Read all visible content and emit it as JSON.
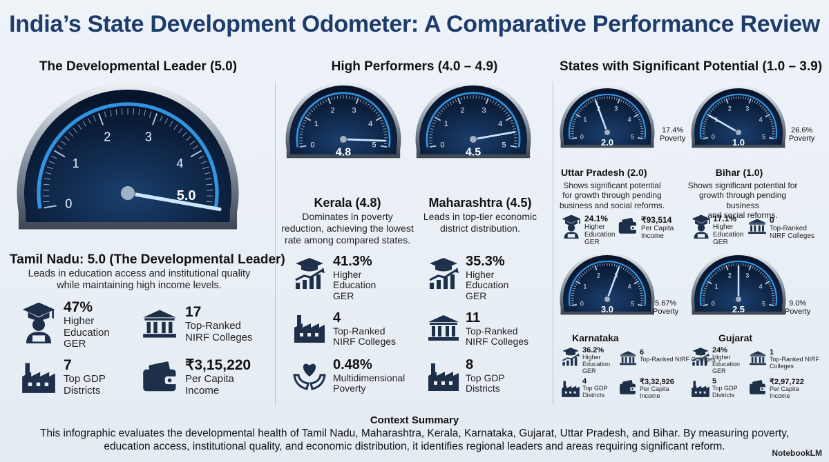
{
  "title": "India’s State Development Odometer: A Comparative Performance Review",
  "columns": {
    "leader": "The Developmental Leader (5.0)",
    "high": "High Performers (4.0 – 4.9)",
    "potential": "States with Significant Potential (1.0 – 3.9)"
  },
  "tamil_nadu": {
    "score": 5.0,
    "gauge_value": "5.0",
    "heading": "Tamil Nadu: 5.0 (The Developmental Leader)",
    "desc_line1": "Leads in education access and institutional quality",
    "desc_line2": "while maintaining high income levels.",
    "stats": [
      {
        "value": "47%",
        "label1": "Higher",
        "label2": "Education",
        "label3": "GER",
        "icon": "graduate-icon"
      },
      {
        "value": "17",
        "label1": "Top-Ranked",
        "label2": "NIRF Colleges",
        "icon": "institution-icon"
      },
      {
        "value": "7",
        "label1": "Top GDP",
        "label2": "Districts",
        "icon": "factory-icon"
      },
      {
        "value": "₹3,15,220",
        "label1": "Per Capita",
        "label2": "Income",
        "icon": "wallet-icon"
      }
    ]
  },
  "kerala": {
    "score": 4.8,
    "gauge_value": "4.8",
    "heading": "Kerala (4.8)",
    "desc_line1": "Dominates in poverty",
    "desc_line2": "reduction, achieving the lowest",
    "desc_line3": "rate among compared states.",
    "stats": [
      {
        "value": "41.3%",
        "label1": "Higher",
        "label2": "Education",
        "label3": "GER",
        "icon": "education-growth-icon"
      },
      {
        "value": "4",
        "label1": "Top-Ranked",
        "label2": "NIRF Colleges",
        "icon": "factory-icon"
      },
      {
        "value": "0.48%",
        "label1": "Multidimensional",
        "label2": "Poverty",
        "icon": "heart-hands-icon"
      }
    ]
  },
  "maharashtra": {
    "score": 4.5,
    "gauge_value": "4.5",
    "heading": "Maharashtra (4.5)",
    "desc_line1": "Leads in top-tier economic",
    "desc_line2": "district distribution.",
    "stats": [
      {
        "value": "35.3%",
        "label1": "Higher",
        "label2": "Education",
        "label3": "GER",
        "icon": "education-growth-icon"
      },
      {
        "value": "11",
        "label1": "Top-Ranked",
        "label2": "NIRF Colleges",
        "icon": "institution-icon"
      },
      {
        "value": "8",
        "label1": "Top GDP",
        "label2": "Districts",
        "icon": "factory-icon"
      }
    ]
  },
  "uttar_pradesh": {
    "score": 2.0,
    "gauge_value": "2.0",
    "poverty_value": "17.4%",
    "poverty_label": "Poverty",
    "heading": "Uttar Pradesh (2.0)",
    "desc_line1": "Shows significant potential",
    "desc_line2": "for growth through pending",
    "desc_line3": "business and social reforms.",
    "stats": [
      {
        "value": "24.1%",
        "label1": "Higher",
        "label2": "Education",
        "label3": "GER",
        "icon": "graduate-icon"
      },
      {
        "value": "₹93,514",
        "label1": "Per Capita",
        "label2": "Income",
        "icon": "wallet-icon"
      }
    ]
  },
  "bihar": {
    "score": 1.0,
    "gauge_value": "1.0",
    "poverty_value": "26.6%",
    "poverty_label": "Poverty",
    "heading": "Bihar (1.0)",
    "desc_line1": "Shows significant potential for",
    "desc_line2": "growth through pending business",
    "desc_line3": "and social reforms.",
    "stats": [
      {
        "value": "17.1%",
        "label1": "Higher",
        "label2": "Education",
        "label3": "GER",
        "icon": "graduate-icon"
      },
      {
        "value": "0",
        "label1": "Top-Ranked",
        "label2": "NIRF Colleges",
        "icon": "institution-icon"
      }
    ]
  },
  "karnataka": {
    "score": 3.0,
    "gauge_value": "3.0",
    "poverty_value": "5.67%",
    "poverty_label": "Poverty",
    "heading": "Karnataka",
    "stats": [
      {
        "value": "36.2%",
        "label1": "Higher",
        "label2": "Education",
        "label3": "GER",
        "icon": "education-growth-icon"
      },
      {
        "value": "6",
        "label1": "Top-Ranked NIRF Colleges",
        "icon": "institution-icon"
      },
      {
        "value": "4",
        "label1": "Top GDP",
        "label2": "Districts",
        "icon": "factory-icon"
      },
      {
        "value": "₹3,32,926",
        "label1": "Per Capita",
        "label2": "Income",
        "icon": "wallet-icon"
      }
    ]
  },
  "gujarat": {
    "score": 2.5,
    "gauge_value": "2.5",
    "poverty_value": "9.0%",
    "poverty_label": "Poverty",
    "heading": "Gujarat",
    "stats": [
      {
        "value": "24%",
        "label1": "Higher",
        "label2": "Education",
        "label3": "GER",
        "icon": "education-growth-icon"
      },
      {
        "value": "1",
        "label1": "Top-Ranked NIRF Colleges",
        "icon": "institution-icon"
      },
      {
        "value": "5",
        "label1": "Top GDP",
        "label2": "Districts",
        "icon": "factory-icon"
      },
      {
        "value": "₹2,97,722",
        "label1": "Per Capita",
        "label2": "Income",
        "icon": "wallet-icon"
      }
    ]
  },
  "gauge_ticks": [
    "0",
    "1",
    "2",
    "3",
    "4",
    "5"
  ],
  "summary": {
    "title": "Context Summary",
    "line1": "This infographic evaluates the developmental health of Tamil Nadu, Maharashtra, Kerala, Karnataka, Gujarat, Uttar Pradesh, and Bihar. By measuring poverty,",
    "line2": "education access, institutional quality, and economic distribution, it identifies regional leaders and areas requiring significant reform."
  },
  "brand": "NotebookLM",
  "colors": {
    "title": "#1d3b6b",
    "gauge_face": "#0c1f3d",
    "gauge_glow": "#3aa8ff",
    "icon": "#1e2f4a"
  }
}
